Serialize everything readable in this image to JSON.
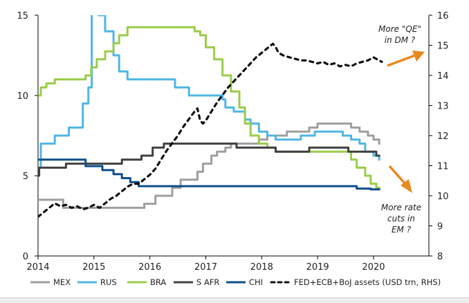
{
  "chart_data": {
    "type": "line",
    "x_ticks": [
      "2014",
      "2015",
      "2016",
      "2017",
      "2018",
      "2019",
      "2020"
    ],
    "y_left": {
      "range": [
        0,
        15
      ],
      "ticks": [
        "0",
        "5",
        "10",
        "15"
      ]
    },
    "y_right": {
      "range": [
        8,
        16
      ],
      "ticks": [
        "8",
        "9",
        "10",
        "11",
        "12",
        "13",
        "14",
        "15",
        "16"
      ]
    },
    "annotations": [
      {
        "id": "qe",
        "lines": [
          "More \"QE\"",
          "in DM ?"
        ]
      },
      {
        "id": "cuts",
        "lines": [
          "More rate",
          "cuts in",
          "EM ?"
        ]
      }
    ],
    "series": [
      {
        "name": "MEX",
        "color": "#9e9e9e",
        "axis": "left",
        "dash": false,
        "points": [
          [
            2014.0,
            3.5
          ],
          [
            2014.45,
            3.5
          ],
          [
            2014.45,
            3.0
          ],
          [
            2015.9,
            3.0
          ],
          [
            2015.9,
            3.25
          ],
          [
            2016.1,
            3.25
          ],
          [
            2016.1,
            3.75
          ],
          [
            2016.4,
            3.75
          ],
          [
            2016.4,
            4.25
          ],
          [
            2016.55,
            4.25
          ],
          [
            2016.55,
            4.75
          ],
          [
            2016.85,
            4.75
          ],
          [
            2016.85,
            5.25
          ],
          [
            2016.95,
            5.25
          ],
          [
            2016.95,
            5.75
          ],
          [
            2017.1,
            5.75
          ],
          [
            2017.1,
            6.25
          ],
          [
            2017.2,
            6.25
          ],
          [
            2017.2,
            6.5
          ],
          [
            2017.35,
            6.5
          ],
          [
            2017.35,
            6.75
          ],
          [
            2017.45,
            6.75
          ],
          [
            2017.45,
            7.0
          ],
          [
            2017.95,
            7.0
          ],
          [
            2017.95,
            7.25
          ],
          [
            2018.1,
            7.25
          ],
          [
            2018.1,
            7.5
          ],
          [
            2018.45,
            7.5
          ],
          [
            2018.45,
            7.75
          ],
          [
            2018.85,
            7.75
          ],
          [
            2018.85,
            8.0
          ],
          [
            2019.0,
            8.0
          ],
          [
            2019.0,
            8.25
          ],
          [
            2019.6,
            8.25
          ],
          [
            2019.6,
            8.0
          ],
          [
            2019.75,
            8.0
          ],
          [
            2019.75,
            7.75
          ],
          [
            2019.9,
            7.75
          ],
          [
            2019.9,
            7.5
          ],
          [
            2020.0,
            7.5
          ],
          [
            2020.0,
            7.25
          ],
          [
            2020.1,
            7.25
          ],
          [
            2020.1,
            7.0
          ],
          [
            2020.12,
            7.0
          ]
        ]
      },
      {
        "name": "RUS",
        "color": "#4fb6e4",
        "axis": "left",
        "dash": false,
        "points": [
          [
            2014.0,
            5.5
          ],
          [
            2014.05,
            5.5
          ],
          [
            2014.05,
            7.0
          ],
          [
            2014.3,
            7.0
          ],
          [
            2014.3,
            7.5
          ],
          [
            2014.55,
            7.5
          ],
          [
            2014.55,
            8.0
          ],
          [
            2014.8,
            8.0
          ],
          [
            2014.8,
            9.5
          ],
          [
            2014.9,
            9.5
          ],
          [
            2014.9,
            10.5
          ],
          [
            2014.96,
            10.5
          ],
          [
            2014.96,
            17.0
          ],
          [
            2015.08,
            17.0
          ],
          [
            2015.08,
            15.0
          ],
          [
            2015.2,
            15.0
          ],
          [
            2015.2,
            14.0
          ],
          [
            2015.35,
            14.0
          ],
          [
            2015.35,
            12.5
          ],
          [
            2015.45,
            12.5
          ],
          [
            2015.45,
            11.5
          ],
          [
            2015.6,
            11.5
          ],
          [
            2015.6,
            11.0
          ],
          [
            2016.45,
            11.0
          ],
          [
            2016.45,
            10.5
          ],
          [
            2016.7,
            10.5
          ],
          [
            2016.7,
            10.0
          ],
          [
            2017.3,
            10.0
          ],
          [
            2017.3,
            9.75
          ],
          [
            2017.35,
            9.75
          ],
          [
            2017.35,
            9.25
          ],
          [
            2017.5,
            9.25
          ],
          [
            2017.5,
            9.0
          ],
          [
            2017.7,
            9.0
          ],
          [
            2017.7,
            8.5
          ],
          [
            2017.8,
            8.5
          ],
          [
            2017.8,
            8.25
          ],
          [
            2017.95,
            8.25
          ],
          [
            2017.95,
            7.75
          ],
          [
            2018.1,
            7.75
          ],
          [
            2018.1,
            7.5
          ],
          [
            2018.25,
            7.5
          ],
          [
            2018.25,
            7.25
          ],
          [
            2018.7,
            7.25
          ],
          [
            2018.7,
            7.5
          ],
          [
            2018.95,
            7.5
          ],
          [
            2018.95,
            7.75
          ],
          [
            2019.45,
            7.75
          ],
          [
            2019.45,
            7.5
          ],
          [
            2019.6,
            7.5
          ],
          [
            2019.6,
            7.25
          ],
          [
            2019.75,
            7.25
          ],
          [
            2019.75,
            7.0
          ],
          [
            2019.85,
            7.0
          ],
          [
            2019.85,
            6.5
          ],
          [
            2020.0,
            6.5
          ],
          [
            2020.0,
            6.25
          ],
          [
            2020.1,
            6.25
          ],
          [
            2020.1,
            6.0
          ],
          [
            2020.12,
            6.0
          ]
        ]
      },
      {
        "name": "BRA",
        "color": "#9acc48",
        "axis": "left",
        "dash": false,
        "points": [
          [
            2014.0,
            10.0
          ],
          [
            2014.05,
            10.0
          ],
          [
            2014.05,
            10.5
          ],
          [
            2014.15,
            10.5
          ],
          [
            2014.15,
            10.75
          ],
          [
            2014.3,
            10.75
          ],
          [
            2014.3,
            11.0
          ],
          [
            2014.85,
            11.0
          ],
          [
            2014.85,
            11.25
          ],
          [
            2014.95,
            11.25
          ],
          [
            2014.95,
            11.75
          ],
          [
            2015.05,
            11.75
          ],
          [
            2015.05,
            12.25
          ],
          [
            2015.2,
            12.25
          ],
          [
            2015.2,
            12.75
          ],
          [
            2015.35,
            12.75
          ],
          [
            2015.35,
            13.25
          ],
          [
            2015.45,
            13.25
          ],
          [
            2015.45,
            13.75
          ],
          [
            2015.6,
            13.75
          ],
          [
            2015.6,
            14.25
          ],
          [
            2016.8,
            14.25
          ],
          [
            2016.8,
            14.0
          ],
          [
            2016.9,
            14.0
          ],
          [
            2016.9,
            13.75
          ],
          [
            2017.0,
            13.75
          ],
          [
            2017.0,
            13.0
          ],
          [
            2017.15,
            13.0
          ],
          [
            2017.15,
            12.25
          ],
          [
            2017.3,
            12.25
          ],
          [
            2017.3,
            11.25
          ],
          [
            2017.45,
            11.25
          ],
          [
            2017.45,
            10.25
          ],
          [
            2017.6,
            10.25
          ],
          [
            2017.6,
            9.25
          ],
          [
            2017.7,
            9.25
          ],
          [
            2017.7,
            8.25
          ],
          [
            2017.8,
            8.25
          ],
          [
            2017.8,
            7.5
          ],
          [
            2017.95,
            7.5
          ],
          [
            2017.95,
            7.0
          ],
          [
            2018.1,
            7.0
          ],
          [
            2018.1,
            6.75
          ],
          [
            2018.25,
            6.75
          ],
          [
            2018.25,
            6.5
          ],
          [
            2019.6,
            6.5
          ],
          [
            2019.6,
            6.0
          ],
          [
            2019.7,
            6.0
          ],
          [
            2019.7,
            5.5
          ],
          [
            2019.85,
            5.5
          ],
          [
            2019.85,
            5.0
          ],
          [
            2019.95,
            5.0
          ],
          [
            2019.95,
            4.5
          ],
          [
            2020.05,
            4.5
          ],
          [
            2020.05,
            4.25
          ],
          [
            2020.12,
            4.25
          ]
        ]
      },
      {
        "name": "S AFR",
        "color": "#404040",
        "axis": "left",
        "dash": false,
        "points": [
          [
            2014.0,
            5.0
          ],
          [
            2014.02,
            5.0
          ],
          [
            2014.02,
            5.5
          ],
          [
            2014.5,
            5.5
          ],
          [
            2014.5,
            5.75
          ],
          [
            2015.5,
            5.75
          ],
          [
            2015.5,
            6.0
          ],
          [
            2015.85,
            6.0
          ],
          [
            2015.85,
            6.25
          ],
          [
            2016.05,
            6.25
          ],
          [
            2016.05,
            6.75
          ],
          [
            2016.25,
            6.75
          ],
          [
            2016.25,
            7.0
          ],
          [
            2017.55,
            7.0
          ],
          [
            2017.55,
            6.75
          ],
          [
            2017.85,
            6.75
          ],
          [
            2017.85,
            6.75
          ],
          [
            2018.25,
            6.75
          ],
          [
            2018.25,
            6.5
          ],
          [
            2018.85,
            6.5
          ],
          [
            2018.85,
            6.75
          ],
          [
            2019.55,
            6.75
          ],
          [
            2019.55,
            6.5
          ],
          [
            2020.05,
            6.5
          ],
          [
            2020.05,
            6.25
          ],
          [
            2020.12,
            6.25
          ]
        ]
      },
      {
        "name": "CHI",
        "color": "#0d4e8a",
        "axis": "left",
        "dash": false,
        "points": [
          [
            2014.0,
            6.0
          ],
          [
            2014.85,
            6.0
          ],
          [
            2014.85,
            5.6
          ],
          [
            2015.15,
            5.6
          ],
          [
            2015.15,
            5.35
          ],
          [
            2015.35,
            5.35
          ],
          [
            2015.35,
            5.1
          ],
          [
            2015.5,
            5.1
          ],
          [
            2015.5,
            4.85
          ],
          [
            2015.65,
            4.85
          ],
          [
            2015.65,
            4.6
          ],
          [
            2015.8,
            4.6
          ],
          [
            2015.8,
            4.35
          ],
          [
            2019.7,
            4.35
          ],
          [
            2019.7,
            4.2
          ],
          [
            2019.95,
            4.2
          ],
          [
            2019.95,
            4.15
          ],
          [
            2020.12,
            4.15
          ]
        ]
      },
      {
        "name": "FED+ECB+BoJ assets (USD trn, RHS)",
        "color": "#111111",
        "axis": "right",
        "dash": true,
        "points": [
          [
            2014.0,
            9.3
          ],
          [
            2014.1,
            9.45
          ],
          [
            2014.2,
            9.6
          ],
          [
            2014.3,
            9.75
          ],
          [
            2014.4,
            9.65
          ],
          [
            2014.5,
            9.7
          ],
          [
            2014.6,
            9.6
          ],
          [
            2014.7,
            9.65
          ],
          [
            2014.8,
            9.55
          ],
          [
            2014.9,
            9.6
          ],
          [
            2015.0,
            9.7
          ],
          [
            2015.1,
            9.6
          ],
          [
            2015.2,
            9.75
          ],
          [
            2015.3,
            9.9
          ],
          [
            2015.4,
            10.0
          ],
          [
            2015.5,
            10.15
          ],
          [
            2015.6,
            10.3
          ],
          [
            2015.7,
            10.4
          ],
          [
            2015.8,
            10.4
          ],
          [
            2015.9,
            10.55
          ],
          [
            2016.0,
            10.7
          ],
          [
            2016.1,
            10.9
          ],
          [
            2016.2,
            11.2
          ],
          [
            2016.3,
            11.5
          ],
          [
            2016.4,
            11.75
          ],
          [
            2016.5,
            12.0
          ],
          [
            2016.6,
            12.3
          ],
          [
            2016.7,
            12.55
          ],
          [
            2016.8,
            12.8
          ],
          [
            2016.85,
            12.9
          ],
          [
            2016.9,
            12.5
          ],
          [
            2016.95,
            12.4
          ],
          [
            2017.0,
            12.5
          ],
          [
            2017.1,
            12.8
          ],
          [
            2017.2,
            13.1
          ],
          [
            2017.3,
            13.35
          ],
          [
            2017.4,
            13.6
          ],
          [
            2017.5,
            13.8
          ],
          [
            2017.6,
            14.0
          ],
          [
            2017.7,
            14.2
          ],
          [
            2017.8,
            14.4
          ],
          [
            2017.9,
            14.6
          ],
          [
            2018.0,
            14.75
          ],
          [
            2018.1,
            14.9
          ],
          [
            2018.2,
            15.05
          ],
          [
            2018.25,
            14.95
          ],
          [
            2018.3,
            14.75
          ],
          [
            2018.4,
            14.65
          ],
          [
            2018.5,
            14.6
          ],
          [
            2018.6,
            14.55
          ],
          [
            2018.7,
            14.5
          ],
          [
            2018.8,
            14.5
          ],
          [
            2018.9,
            14.45
          ],
          [
            2019.0,
            14.4
          ],
          [
            2019.1,
            14.45
          ],
          [
            2019.2,
            14.35
          ],
          [
            2019.3,
            14.4
          ],
          [
            2019.4,
            14.3
          ],
          [
            2019.5,
            14.35
          ],
          [
            2019.6,
            14.3
          ],
          [
            2019.7,
            14.4
          ],
          [
            2019.8,
            14.45
          ],
          [
            2019.9,
            14.5
          ],
          [
            2020.0,
            14.6
          ],
          [
            2020.05,
            14.55
          ],
          [
            2020.1,
            14.5
          ],
          [
            2020.15,
            14.45
          ]
        ]
      }
    ]
  }
}
